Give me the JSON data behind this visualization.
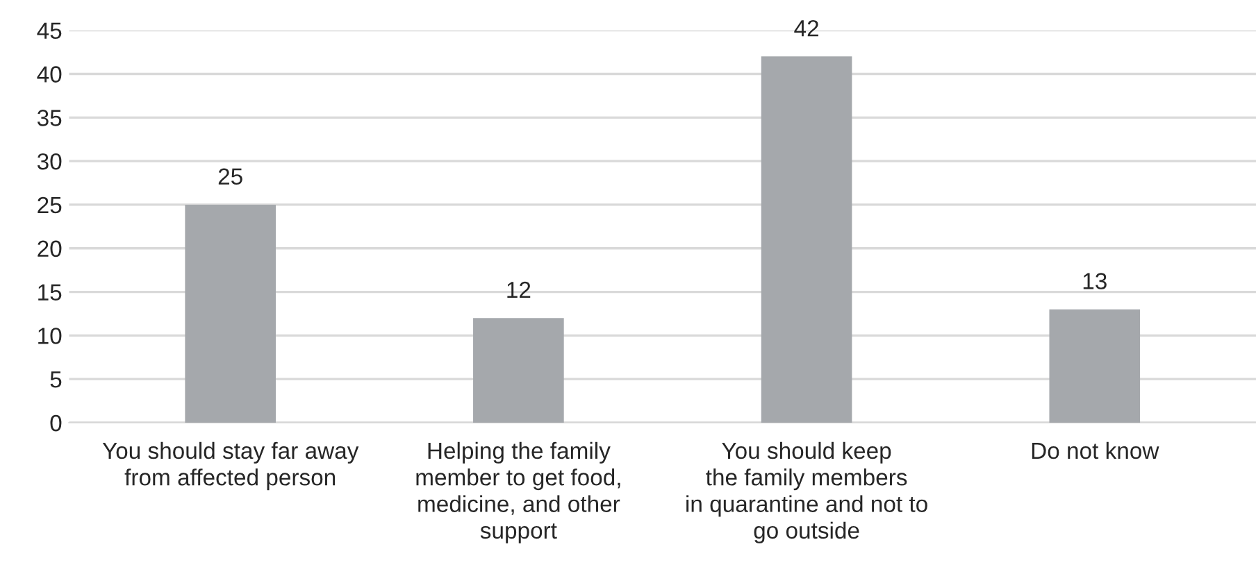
{
  "chart_data": {
    "type": "bar",
    "categories": [
      "You should stay far away\nfrom affected person",
      "Helping the family\nmember to get food,\nmedicine, and other\nsupport",
      "You should keep\nthe family members\nin quarantine and not to\ngo outside",
      "Do not know"
    ],
    "values": [
      25,
      12,
      42,
      13
    ],
    "color": "#a5a8ac",
    "ylim": [
      0,
      45
    ],
    "yticks": [
      0,
      5,
      10,
      15,
      20,
      25,
      30,
      35,
      40,
      45
    ],
    "grid": "y",
    "data_labels": true
  }
}
